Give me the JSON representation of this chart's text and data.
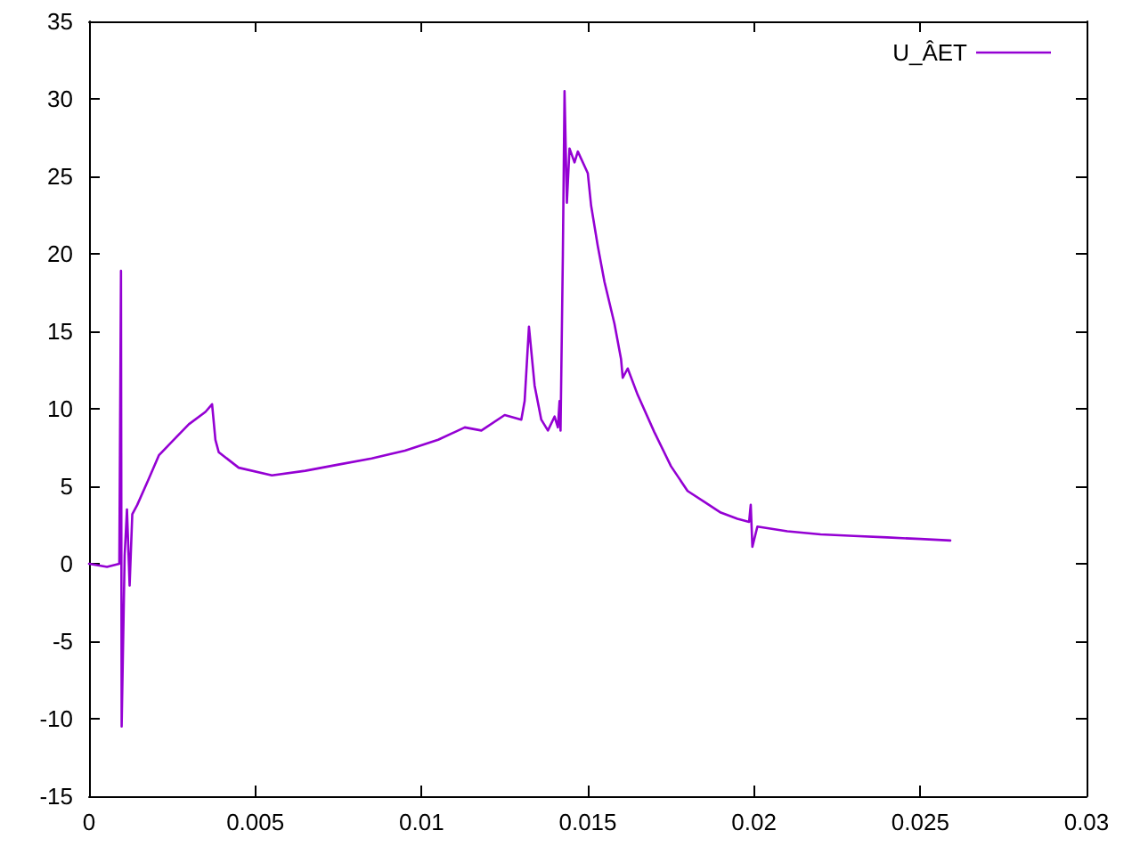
{
  "chart_data": {
    "type": "line",
    "x": [
      0,
      0.00054,
      0.00091,
      0.00096,
      0.00098,
      0.00107,
      0.00114,
      0.00122,
      0.0013,
      0.00145,
      0.0018,
      0.0021,
      0.0025,
      0.003,
      0.0035,
      0.0037,
      0.0038,
      0.0039,
      0.0045,
      0.0055,
      0.0065,
      0.0075,
      0.0085,
      0.0095,
      0.0105,
      0.0113,
      0.0118,
      0.0125,
      0.013,
      0.0131,
      0.01323,
      0.0134,
      0.0136,
      0.0138,
      0.014,
      0.0141,
      0.01415,
      0.01418,
      0.01425,
      0.0143,
      0.01437,
      0.01445,
      0.0146,
      0.0147,
      0.015,
      0.0151,
      0.0153,
      0.0155,
      0.0158,
      0.016,
      0.01605,
      0.0162,
      0.0165,
      0.017,
      0.0175,
      0.018,
      0.0185,
      0.019,
      0.0195,
      0.01985,
      0.0199,
      0.01995,
      0.0201,
      0.021,
      0.022,
      0.023,
      0.024,
      0.025,
      0.0259
    ],
    "series": [
      {
        "name": "U_ÂET",
        "color": "#9400d3",
        "values": [
          0,
          -0.2,
          0,
          18.9,
          -10.5,
          0.5,
          3.5,
          -1.4,
          3.2,
          3.8,
          5.5,
          7,
          7.9,
          9,
          9.8,
          10.3,
          8,
          7.2,
          6.2,
          5.7,
          6,
          6.4,
          6.8,
          7.3,
          8,
          8.8,
          8.6,
          9.6,
          9.3,
          10.5,
          15.3,
          11.5,
          9.3,
          8.6,
          9.5,
          8.8,
          10.5,
          8.6,
          20,
          30.5,
          23.3,
          26.8,
          25.9,
          26.6,
          25.2,
          23.1,
          20.5,
          18.2,
          15.5,
          13.2,
          12,
          12.6,
          10.9,
          8.5,
          6.3,
          4.7,
          4,
          3.3,
          2.9,
          2.7,
          3.8,
          1.1,
          2.4,
          2.1,
          1.9,
          1.8,
          1.7,
          1.6,
          1.5
        ]
      }
    ],
    "xlim": [
      0,
      0.03
    ],
    "xticks": [
      0,
      0.005,
      0.01,
      0.015,
      0.02,
      0.025,
      0.03
    ],
    "ylim": [
      -15,
      35
    ],
    "yticks": [
      -15,
      -10,
      -5,
      0,
      5,
      10,
      15,
      20,
      25,
      30,
      35
    ],
    "legend": "top right"
  }
}
